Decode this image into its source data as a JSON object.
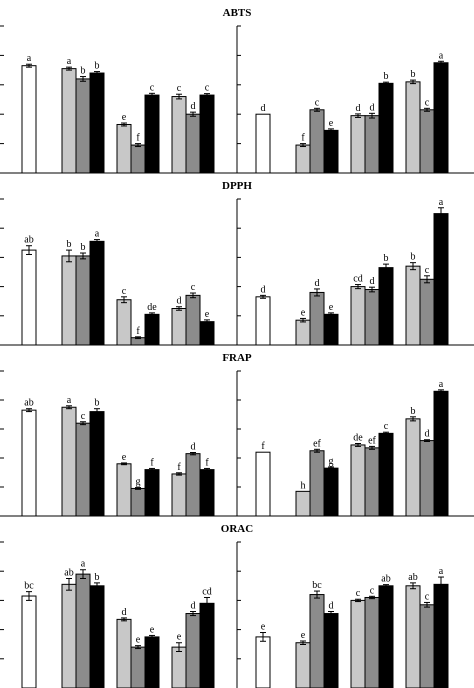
{
  "chart_data": [
    {
      "type": "bar",
      "title": "ABTS",
      "ylim": [
        0,
        5
      ],
      "colors": {
        "control": "#ffffff",
        "light": "#c8c8c8",
        "mid": "#8c8c8c",
        "dark": "#000000"
      },
      "left_groups": [
        {
          "bars": [
            {
              "color": "control",
              "value": 3.65,
              "err": 0.05,
              "label": "a"
            }
          ]
        },
        {
          "bars": [
            {
              "color": "light",
              "value": 3.55,
              "err": 0.05,
              "label": "a"
            },
            {
              "color": "mid",
              "value": 3.2,
              "err": 0.08,
              "label": "b"
            },
            {
              "color": "dark",
              "value": 3.4,
              "err": 0.05,
              "label": "b"
            }
          ]
        },
        {
          "bars": [
            {
              "color": "light",
              "value": 1.65,
              "err": 0.05,
              "label": "e"
            },
            {
              "color": "mid",
              "value": 0.95,
              "err": 0.05,
              "label": "f"
            },
            {
              "color": "dark",
              "value": 2.65,
              "err": 0.06,
              "label": "c"
            }
          ]
        },
        {
          "bars": [
            {
              "color": "light",
              "value": 2.6,
              "err": 0.08,
              "label": "c"
            },
            {
              "color": "mid",
              "value": 2.0,
              "err": 0.07,
              "label": "d"
            },
            {
              "color": "dark",
              "value": 2.65,
              "err": 0.05,
              "label": "c"
            }
          ]
        }
      ],
      "right_groups": [
        {
          "bars": [
            {
              "color": "control",
              "value": 2.0,
              "err": 0.0,
              "label": "d"
            }
          ]
        },
        {
          "bars": [
            {
              "color": "light",
              "value": 0.95,
              "err": 0.05,
              "label": "f"
            },
            {
              "color": "mid",
              "value": 2.15,
              "err": 0.05,
              "label": "c"
            },
            {
              "color": "dark",
              "value": 1.45,
              "err": 0.05,
              "label": "e"
            }
          ]
        },
        {
          "bars": [
            {
              "color": "light",
              "value": 1.95,
              "err": 0.06,
              "label": "d"
            },
            {
              "color": "mid",
              "value": 1.95,
              "err": 0.08,
              "label": "d"
            },
            {
              "color": "dark",
              "value": 3.05,
              "err": 0.04,
              "label": "b"
            }
          ]
        },
        {
          "bars": [
            {
              "color": "light",
              "value": 3.1,
              "err": 0.06,
              "label": "b"
            },
            {
              "color": "mid",
              "value": 2.15,
              "err": 0.05,
              "label": "c"
            },
            {
              "color": "dark",
              "value": 3.75,
              "err": 0.05,
              "label": "a"
            }
          ]
        }
      ]
    },
    {
      "type": "bar",
      "title": "DPPH",
      "ylim": [
        0,
        5
      ],
      "left_groups": [
        {
          "bars": [
            {
              "color": "control",
              "value": 3.25,
              "err": 0.15,
              "label": "ab"
            }
          ]
        },
        {
          "bars": [
            {
              "color": "light",
              "value": 3.05,
              "err": 0.2,
              "label": "b"
            },
            {
              "color": "mid",
              "value": 3.05,
              "err": 0.1,
              "label": "b"
            },
            {
              "color": "dark",
              "value": 3.55,
              "err": 0.06,
              "label": "a"
            }
          ]
        },
        {
          "bars": [
            {
              "color": "light",
              "value": 1.55,
              "err": 0.1,
              "label": "c"
            },
            {
              "color": "mid",
              "value": 0.25,
              "err": 0.03,
              "label": "f"
            },
            {
              "color": "dark",
              "value": 1.05,
              "err": 0.05,
              "label": "de"
            }
          ]
        },
        {
          "bars": [
            {
              "color": "light",
              "value": 1.25,
              "err": 0.06,
              "label": "d"
            },
            {
              "color": "mid",
              "value": 1.7,
              "err": 0.08,
              "label": "c"
            },
            {
              "color": "dark",
              "value": 0.8,
              "err": 0.06,
              "label": "e"
            }
          ]
        }
      ],
      "right_groups": [
        {
          "bars": [
            {
              "color": "control",
              "value": 1.65,
              "err": 0.05,
              "label": "d"
            }
          ]
        },
        {
          "bars": [
            {
              "color": "light",
              "value": 0.85,
              "err": 0.06,
              "label": "e"
            },
            {
              "color": "mid",
              "value": 1.8,
              "err": 0.12,
              "label": "d"
            },
            {
              "color": "dark",
              "value": 1.05,
              "err": 0.05,
              "label": "e"
            }
          ]
        },
        {
          "bars": [
            {
              "color": "light",
              "value": 2.0,
              "err": 0.07,
              "label": "cd"
            },
            {
              "color": "mid",
              "value": 1.9,
              "err": 0.08,
              "label": "d"
            },
            {
              "color": "dark",
              "value": 2.65,
              "err": 0.12,
              "label": "b"
            }
          ]
        },
        {
          "bars": [
            {
              "color": "light",
              "value": 2.7,
              "err": 0.12,
              "label": "b"
            },
            {
              "color": "mid",
              "value": 2.25,
              "err": 0.12,
              "label": "c"
            },
            {
              "color": "dark",
              "value": 4.5,
              "err": 0.2,
              "label": "a"
            }
          ]
        }
      ]
    },
    {
      "type": "bar",
      "title": "FRAP",
      "ylim": [
        0,
        5
      ],
      "left_groups": [
        {
          "bars": [
            {
              "color": "control",
              "value": 3.65,
              "err": 0.05,
              "label": "ab"
            }
          ]
        },
        {
          "bars": [
            {
              "color": "light",
              "value": 3.75,
              "err": 0.05,
              "label": "a"
            },
            {
              "color": "mid",
              "value": 3.2,
              "err": 0.05,
              "label": "c"
            },
            {
              "color": "dark",
              "value": 3.6,
              "err": 0.1,
              "label": "b"
            }
          ]
        },
        {
          "bars": [
            {
              "color": "light",
              "value": 1.8,
              "err": 0.03,
              "label": "e"
            },
            {
              "color": "mid",
              "value": 0.95,
              "err": 0.03,
              "label": "g"
            },
            {
              "color": "dark",
              "value": 1.6,
              "err": 0.04,
              "label": "f"
            }
          ]
        },
        {
          "bars": [
            {
              "color": "light",
              "value": 1.45,
              "err": 0.04,
              "label": "f"
            },
            {
              "color": "mid",
              "value": 2.15,
              "err": 0.04,
              "label": "d"
            },
            {
              "color": "dark",
              "value": 1.6,
              "err": 0.04,
              "label": "f"
            }
          ]
        }
      ],
      "right_groups": [
        {
          "bars": [
            {
              "color": "control",
              "value": 2.2,
              "err": 0.0,
              "label": "f"
            }
          ]
        },
        {
          "bars": [
            {
              "color": "light",
              "value": 0.85,
              "err": 0.0,
              "label": "h"
            },
            {
              "color": "mid",
              "value": 2.25,
              "err": 0.05,
              "label": "ef"
            },
            {
              "color": "dark",
              "value": 1.65,
              "err": 0.04,
              "label": "g"
            }
          ]
        },
        {
          "bars": [
            {
              "color": "light",
              "value": 2.45,
              "err": 0.05,
              "label": "de"
            },
            {
              "color": "mid",
              "value": 2.35,
              "err": 0.05,
              "label": "ef"
            },
            {
              "color": "dark",
              "value": 2.85,
              "err": 0.04,
              "label": "c"
            }
          ]
        },
        {
          "bars": [
            {
              "color": "light",
              "value": 3.35,
              "err": 0.07,
              "label": "b"
            },
            {
              "color": "mid",
              "value": 2.6,
              "err": 0.03,
              "label": "d"
            },
            {
              "color": "dark",
              "value": 4.3,
              "err": 0.05,
              "label": "a"
            }
          ]
        }
      ]
    },
    {
      "type": "bar",
      "title": "ORAC",
      "ylim": [
        0,
        5
      ],
      "left_groups": [
        {
          "bars": [
            {
              "color": "control",
              "value": 3.15,
              "err": 0.15,
              "label": "bc"
            }
          ]
        },
        {
          "bars": [
            {
              "color": "light",
              "value": 3.55,
              "err": 0.2,
              "label": "ab"
            },
            {
              "color": "mid",
              "value": 3.9,
              "err": 0.15,
              "label": "a"
            },
            {
              "color": "dark",
              "value": 3.5,
              "err": 0.1,
              "label": "b"
            }
          ]
        },
        {
          "bars": [
            {
              "color": "light",
              "value": 2.35,
              "err": 0.05,
              "label": "d"
            },
            {
              "color": "mid",
              "value": 1.4,
              "err": 0.05,
              "label": "e"
            },
            {
              "color": "dark",
              "value": 1.75,
              "err": 0.05,
              "label": "e"
            }
          ]
        },
        {
          "bars": [
            {
              "color": "light",
              "value": 1.4,
              "err": 0.15,
              "label": "e"
            },
            {
              "color": "mid",
              "value": 2.55,
              "err": 0.07,
              "label": "d"
            },
            {
              "color": "dark",
              "value": 2.9,
              "err": 0.2,
              "label": "cd"
            }
          ]
        }
      ],
      "right_groups": [
        {
          "bars": [
            {
              "color": "control",
              "value": 1.75,
              "err": 0.15,
              "label": "e"
            }
          ]
        },
        {
          "bars": [
            {
              "color": "light",
              "value": 1.55,
              "err": 0.06,
              "label": "e"
            },
            {
              "color": "mid",
              "value": 3.2,
              "err": 0.12,
              "label": "bc"
            },
            {
              "color": "dark",
              "value": 2.55,
              "err": 0.07,
              "label": "d"
            }
          ]
        },
        {
          "bars": [
            {
              "color": "light",
              "value": 3.0,
              "err": 0.04,
              "label": "c"
            },
            {
              "color": "mid",
              "value": 3.1,
              "err": 0.04,
              "label": "c"
            },
            {
              "color": "dark",
              "value": 3.5,
              "err": 0.04,
              "label": "ab"
            }
          ]
        },
        {
          "bars": [
            {
              "color": "light",
              "value": 3.5,
              "err": 0.1,
              "label": "ab"
            },
            {
              "color": "mid",
              "value": 2.85,
              "err": 0.08,
              "label": "c"
            },
            {
              "color": "dark",
              "value": 3.55,
              "err": 0.25,
              "label": "a"
            }
          ]
        }
      ]
    }
  ]
}
